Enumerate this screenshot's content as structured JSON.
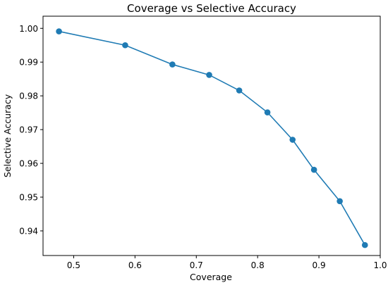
{
  "chart_data": {
    "type": "line",
    "title": "Coverage vs Selective Accuracy",
    "xlabel": "Coverage",
    "ylabel": "Selective Accuracy",
    "xlim": [
      0.45,
      1.0
    ],
    "ylim": [
      0.9327,
      1.0036
    ],
    "xticks": [
      0.5,
      0.6,
      0.7,
      0.8,
      0.9,
      1.0
    ],
    "xtick_labels": [
      "0.5",
      "0.6",
      "0.7",
      "0.8",
      "0.9",
      "1.0"
    ],
    "yticks": [
      0.94,
      0.95,
      0.96,
      0.97,
      0.98,
      0.99,
      1.0
    ],
    "ytick_labels": [
      "0.94",
      "0.95",
      "0.96",
      "0.97",
      "0.98",
      "0.99",
      "1.00"
    ],
    "grid": false,
    "series": [
      {
        "color": "#1f7bb4",
        "x": [
          0.476,
          0.584,
          0.661,
          0.721,
          0.77,
          0.816,
          0.857,
          0.892,
          0.934,
          0.975
        ],
        "y": [
          0.9991,
          0.995,
          0.9893,
          0.9862,
          0.9816,
          0.9751,
          0.967,
          0.9581,
          0.9488,
          0.9358
        ]
      }
    ]
  }
}
